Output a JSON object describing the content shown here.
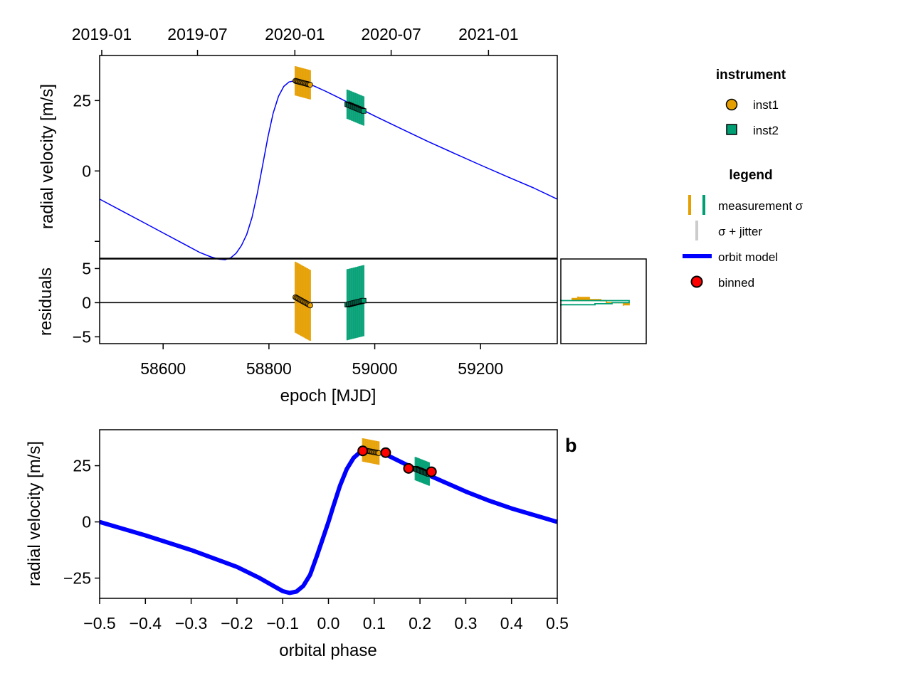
{
  "figure": {
    "panel_label": "b",
    "legend_instrument": {
      "title": "instrument",
      "items": [
        {
          "label": "inst1",
          "marker": "circle",
          "color": "#e69f00"
        },
        {
          "label": "inst2",
          "marker": "square",
          "color": "#009e73"
        }
      ]
    },
    "legend_main": {
      "title": "legend",
      "items": [
        {
          "label": "measurement σ",
          "kind": "errbars"
        },
        {
          "label": "σ + jitter",
          "kind": "jitter",
          "color": "#cccccc"
        },
        {
          "label": "orbit model",
          "kind": "line",
          "color": "#0000ff"
        },
        {
          "label": "binned",
          "kind": "binned",
          "color": "#ff0000"
        }
      ]
    }
  },
  "chart_data": [
    {
      "id": "rv_time",
      "type": "line",
      "xlabel_top": "",
      "top_ticks": [
        "2019-01",
        "2019-07",
        "2020-01",
        "2020-07",
        "2021-01"
      ],
      "top_tick_mjd": [
        58484,
        58665,
        58849,
        59031,
        59215
      ],
      "ylabel": "radial velocity [m/s]",
      "xlim": [
        58480,
        59345
      ],
      "ylim": [
        -31,
        41
      ],
      "yticks": [
        25,
        0
      ],
      "model_color": "#0000ff",
      "model": {
        "x": [
          58480,
          58520,
          58560,
          58600,
          58640,
          58670,
          58690,
          58705,
          58717,
          58728,
          58738,
          58748,
          58758,
          58768,
          58778,
          58788,
          58798,
          58808,
          58818,
          58828,
          58838,
          58848,
          58858,
          58870,
          58885,
          58905,
          58930,
          58960,
          59000,
          59050,
          59100,
          59150,
          59200,
          59250,
          59300,
          59345
        ],
        "y": [
          -10,
          -14,
          -18,
          -22,
          -26,
          -29,
          -30.5,
          -31.3,
          -31.5,
          -30.8,
          -29.2,
          -26.5,
          -22.5,
          -16.5,
          -8,
          2,
          12,
          20.5,
          26.5,
          30,
          31.6,
          32,
          31.8,
          31.2,
          30.2,
          28.5,
          26.2,
          23.3,
          19.5,
          15,
          10.5,
          6.3,
          2.1,
          -2,
          -6,
          -10
        ]
      },
      "series": [
        {
          "name": "inst1",
          "color": "#e69f00",
          "marker": "circle",
          "x_range": [
            58850,
            58878
          ],
          "y_range": [
            32,
            30.6
          ],
          "n_points": 16,
          "sigma": 5.2
        },
        {
          "name": "inst2",
          "color": "#009e73",
          "marker": "square",
          "x_range": [
            58948,
            58979
          ],
          "y_range": [
            23.7,
            21.3
          ],
          "n_points": 16,
          "sigma": 5.2
        }
      ]
    },
    {
      "id": "residuals",
      "type": "scatter",
      "xlabel": "epoch [MJD]",
      "ylabel": "residuals",
      "xlim": [
        58480,
        59345
      ],
      "ylim": [
        -6,
        6.4
      ],
      "xticks": [
        58600,
        58800,
        59000,
        59200
      ],
      "yticks": [
        5,
        0,
        -5
      ],
      "zero_line": true,
      "series": [
        {
          "name": "inst1",
          "color": "#e69f00",
          "marker": "circle",
          "x_range": [
            58850,
            58878
          ],
          "y_range": [
            0.8,
            -0.4
          ],
          "n_points": 16,
          "sigma": 5.2
        },
        {
          "name": "inst2",
          "color": "#009e73",
          "marker": "square",
          "x_range": [
            58948,
            58979
          ],
          "y_range": [
            -0.3,
            0.3
          ],
          "n_points": 16,
          "sigma": 5.2
        }
      ]
    },
    {
      "id": "residual_histogram",
      "type": "bar",
      "orientation": "horizontal",
      "ylim": [
        -6,
        6.4
      ],
      "series": [
        {
          "name": "inst1",
          "color": "#e69f00",
          "bins": [
            [
              0.75,
              0.9,
              0.15
            ],
            [
              0.6,
              0.75,
              0.25
            ],
            [
              0.45,
              0.6,
              0.1
            ],
            [
              0.3,
              0.45,
              0.35
            ],
            [
              0.15,
              0.3,
              0.4
            ],
            [
              0.0,
              0.15,
              0.4
            ],
            [
              -0.15,
              0.0,
              0.55
            ],
            [
              -0.3,
              -0.15,
              0.6
            ],
            [
              -0.45,
              -0.3,
              0.55
            ]
          ]
        },
        {
          "name": "inst2",
          "color": "#009e73",
          "bins": [
            [
              0.3,
              0.45,
              0.0
            ],
            [
              0.15,
              0.3,
              0.6
            ],
            [
              0.0,
              0.15,
              0.6
            ],
            [
              -0.15,
              0.0,
              0.45
            ],
            [
              -0.3,
              -0.15,
              0.3
            ],
            [
              -0.45,
              -0.3,
              0.0
            ]
          ]
        }
      ]
    },
    {
      "id": "rv_phase",
      "type": "line",
      "xlabel": "orbital phase",
      "ylabel": "radial velocity [m/s]",
      "xlim": [
        -0.5,
        0.5
      ],
      "ylim": [
        -34,
        41
      ],
      "xticks": [
        -0.5,
        -0.4,
        -0.3,
        -0.2,
        -0.1,
        0.0,
        0.1,
        0.2,
        0.3,
        0.4,
        0.5
      ],
      "xtick_labels": [
        "−0.5",
        "−0.4",
        "−0.3",
        "−0.2",
        "−0.1",
        "0.0",
        "0.1",
        "0.2",
        "0.3",
        "0.4",
        "0.5"
      ],
      "yticks": [
        25,
        0,
        -25
      ],
      "ytick_labels": [
        "25",
        "0",
        "−25"
      ],
      "model_color": "#0000ff",
      "model": {
        "x": [
          -0.5,
          -0.4,
          -0.3,
          -0.2,
          -0.15,
          -0.12,
          -0.1,
          -0.085,
          -0.07,
          -0.055,
          -0.04,
          -0.025,
          -0.01,
          0.0,
          0.01,
          0.025,
          0.04,
          0.055,
          0.07,
          0.085,
          0.1,
          0.13,
          0.16,
          0.2,
          0.25,
          0.3,
          0.35,
          0.4,
          0.45,
          0.5
        ],
        "y": [
          0,
          -6,
          -12.5,
          -20,
          -25,
          -28.5,
          -30.8,
          -31.6,
          -31,
          -28.5,
          -23.5,
          -15,
          -6,
          0,
          6.5,
          16,
          23.5,
          28.5,
          31.2,
          32,
          31.6,
          29.5,
          26.5,
          22.5,
          18,
          13.5,
          9.5,
          6,
          3,
          0
        ]
      },
      "series": [
        {
          "name": "inst1",
          "color": "#e69f00",
          "marker": "circle",
          "x_range": [
            0.075,
            0.11
          ],
          "y_range": [
            32,
            30.6
          ],
          "n_points": 16,
          "sigma": 5.2
        },
        {
          "name": "inst2",
          "color": "#009e73",
          "marker": "square",
          "x_range": [
            0.19,
            0.22
          ],
          "y_range": [
            23.7,
            21.3
          ],
          "n_points": 16,
          "sigma": 5.2
        }
      ],
      "binned": {
        "name": "binned",
        "color": "#ff0000",
        "x": [
          0.075,
          0.125,
          0.175,
          0.225
        ],
        "y": [
          31.6,
          30.8,
          23.8,
          22.3
        ],
        "err": [
          1.2,
          1.8,
          1.2,
          1.2
        ]
      }
    }
  ]
}
